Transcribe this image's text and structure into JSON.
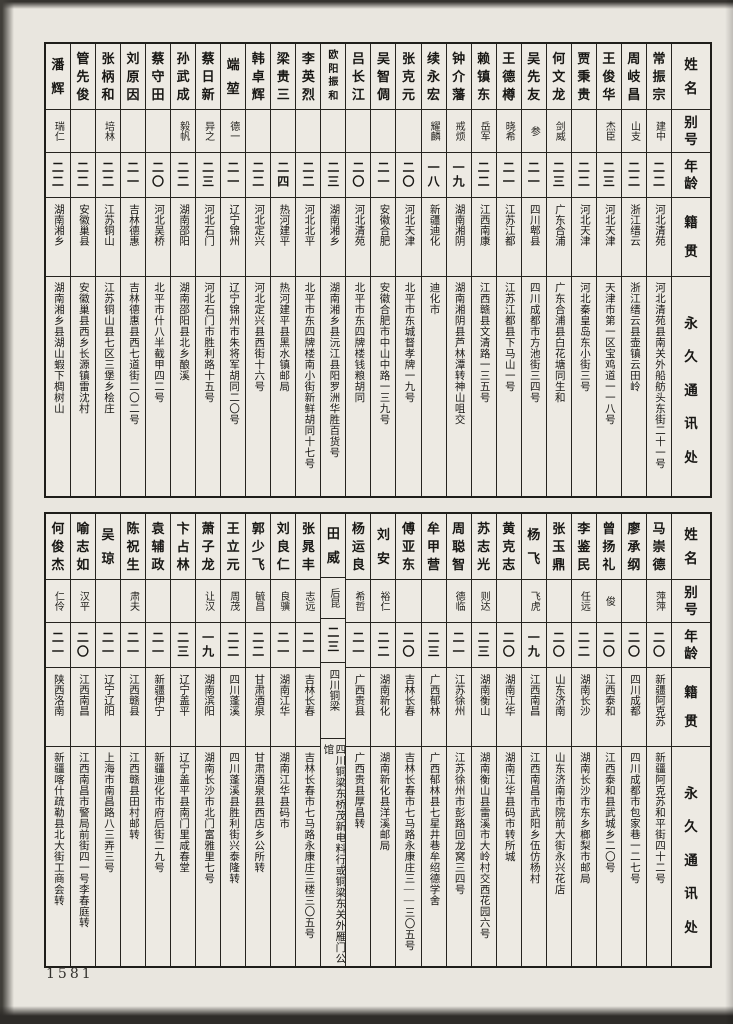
{
  "page": {
    "number": "1581"
  },
  "headers": {
    "name": "姓名",
    "alias": "别号",
    "age": "年龄",
    "native_place": "籍贯",
    "address": "永久通讯处"
  },
  "table1": {
    "entries": [
      {
        "name": "常振宗",
        "alias": "建中",
        "age": "二二",
        "native_place": "河北清苑",
        "address": "河北清苑县南关外船舫头东街二十一号"
      },
      {
        "name": "周岐昌",
        "alias": "山支",
        "age": "二二",
        "native_place": "浙江缙云",
        "address": "浙江缙云县壶镇云田岭"
      },
      {
        "name": "王俊华",
        "alias": "杰臣",
        "age": "二三",
        "native_place": "河北天津",
        "address": "天津市第一区宝鸡道一一八号"
      },
      {
        "name": "贾秉贵",
        "alias": "",
        "age": "二二",
        "native_place": "河北天津",
        "address": "河北秦皇岛东小街三号"
      },
      {
        "name": "何文龙",
        "alias": "剑威",
        "age": "二三",
        "native_place": "广东合浦",
        "address": "广东合浦县白花塘同生和"
      },
      {
        "name": "吴先友",
        "alias": "参",
        "age": "二一",
        "native_place": "四川郫县",
        "address": "四川成都市方池街三四号"
      },
      {
        "name": "王德樽",
        "alias": "晓希",
        "age": "二一",
        "native_place": "江苏江都",
        "address": "江苏江都县下马山一号"
      },
      {
        "name": "赖镇东",
        "alias": "岳军",
        "age": "二二",
        "native_place": "江西南康",
        "address": "江西赣县文清路一三五号"
      },
      {
        "name": "钟介藩",
        "alias": "戒烦",
        "age": "一九",
        "native_place": "湖南湘阴",
        "address": "湖南湘阴县芦林潭转神山咀交"
      },
      {
        "name": "续永宏",
        "alias": "耀麟",
        "age": "一八",
        "native_place": "新疆迪化",
        "address": "迪化市"
      },
      {
        "name": "张克元",
        "alias": "",
        "age": "二〇",
        "native_place": "河北天津",
        "address": "北平市东城督孝牌一九号"
      },
      {
        "name": "吴智倜",
        "alias": "",
        "age": "二一",
        "native_place": "安徽合肥",
        "address": "安徽合肥市中山中路一三九号"
      },
      {
        "name": "吕长江",
        "alias": "",
        "age": "二〇",
        "native_place": "河北清苑",
        "address": "北平市东四牌楼钱粮胡同"
      },
      {
        "name": "欧阳振和",
        "alias": "",
        "age": "二三",
        "native_place": "湖南湘乡",
        "address": "湖南湘乡县沅江县阳罗洲华胜百货号"
      },
      {
        "name": "李英烈",
        "alias": "",
        "age": "二二",
        "native_place": "河北北平",
        "address": "北平市东四牌楼南小街新鲜胡同十七号"
      },
      {
        "name": "梁贵三",
        "alias": "",
        "age": "二四",
        "native_place": "热河建平",
        "address": "热河建平县黑水镇邮局"
      },
      {
        "name": "韩卓辉",
        "alias": "",
        "age": "二二",
        "native_place": "河北定兴",
        "address": "河北定兴县西街十六号"
      },
      {
        "name": "端堃",
        "alias": "德一",
        "age": "二一",
        "native_place": "辽宁锦州",
        "address": "辽宁锦州市朱将军胡同二〇号"
      },
      {
        "name": "蔡日新",
        "alias": "异之",
        "age": "二三",
        "native_place": "河北石门",
        "address": "河北石门市胜利路十五号"
      },
      {
        "name": "孙武成",
        "alias": "毅帆",
        "age": "二二",
        "native_place": "湖南邵阳",
        "address": "湖南邵阳县北乡酿溪"
      },
      {
        "name": "蔡守田",
        "alias": "",
        "age": "二〇",
        "native_place": "河北吴桥",
        "address": "北平市什八半截甲四二号"
      },
      {
        "name": "刘原因",
        "alias": "",
        "age": "二一",
        "native_place": "吉林德惠",
        "address": "吉林德惠县西七道街二〇二号"
      },
      {
        "name": "张柄和",
        "alias": "培林",
        "age": "二二",
        "native_place": "江苏铜山",
        "address": "江苏铜山县七区三堡乡桧庄"
      },
      {
        "name": "管先俊",
        "alias": "",
        "age": "二二",
        "native_place": "安徽巢县",
        "address": "安徽巢县西乡长源镇雷沈村"
      },
      {
        "name": "潘辉",
        "alias": "瑞仁",
        "age": "二二",
        "native_place": "湖南湘乡",
        "address": "湖南湘乡县湖山蝦下椆树山"
      }
    ]
  },
  "table2": {
    "entries": [
      {
        "name": "马崇德",
        "alias": "萍萍",
        "age": "二〇",
        "native_place": "新疆阿克苏",
        "address": "新疆阿克苏和平街四十二号"
      },
      {
        "name": "廖承纲",
        "alias": "",
        "age": "二〇",
        "native_place": "四川成都",
        "address": "四川成都市包家巷一二七号"
      },
      {
        "name": "曾扬礼",
        "alias": "俊",
        "age": "二〇",
        "native_place": "江西泰和",
        "address": "江西泰和县武城乡二〇号"
      },
      {
        "name": "李鉴民",
        "alias": "任远",
        "age": "二二",
        "native_place": "湖南长沙",
        "address": "湖南长沙市东乡榔梨市邮局"
      },
      {
        "name": "张玉鼎",
        "alias": "",
        "age": "二〇",
        "native_place": "山东济南",
        "address": "山东济南市院前大街永兴花店"
      },
      {
        "name": "杨飞",
        "alias": "飞虎",
        "age": "一九",
        "native_place": "江西南昌",
        "address": "江西南昌市武阳乡伍仿杨村"
      },
      {
        "name": "黄克志",
        "alias": "",
        "age": "二〇",
        "native_place": "湖南江华",
        "address": "湖南江华县码市转所城"
      },
      {
        "name": "苏志光",
        "alias": "则达",
        "age": "二三",
        "native_place": "湖南衡山",
        "address": "湖南衡山县雷溪市大岭村交西花园六号"
      },
      {
        "name": "周聪智",
        "alias": "德临",
        "age": "二一",
        "native_place": "江苏徐州",
        "address": "江苏徐州市彭路回龙窝三四号"
      },
      {
        "name": "牟甲营",
        "alias": "",
        "age": "二三",
        "native_place": "广西郁林",
        "address": "广西郁林县七星井巷牟绍德学舍"
      },
      {
        "name": "傅亚东",
        "alias": "",
        "age": "二〇",
        "native_place": "吉林长春",
        "address": "吉林长春市七马路永康庄三——三〇五号"
      },
      {
        "name": "刘安",
        "alias": "裕仁",
        "age": "二二",
        "native_place": "湖南新化",
        "address": "湖南新化县洋溪邮局"
      },
      {
        "name": "杨运良",
        "alias": "希哲",
        "age": "二一",
        "native_place": "广西贵县",
        "address": "广西贵县厚昌转"
      },
      {
        "name": "田威",
        "alias": "后昆",
        "age": "二三",
        "native_place": "四川铜梁",
        "address": "四川铜梁东桥茂新电料行或铜梁东关外雁门公馆"
      },
      {
        "name": "张晁丰",
        "alias": "志远",
        "age": "二一",
        "native_place": "吉林长春",
        "address": "吉林长春市七马路永康庄三楼三〇五号"
      },
      {
        "name": "刘良仁",
        "alias": "良骥",
        "age": "二一",
        "native_place": "湖南江华",
        "address": "湖南江华县码市"
      },
      {
        "name": "郭少飞",
        "alias": "毓昌",
        "age": "二二",
        "native_place": "甘肃酒泉",
        "address": "甘肃酒泉县西店乡公所转"
      },
      {
        "name": "王立元",
        "alias": "周茂",
        "age": "二二",
        "native_place": "四川蓬溪",
        "address": "四川蓬溪县胜利街兴泰隆转"
      },
      {
        "name": "萧子龙",
        "alias": "让汉",
        "age": "一九",
        "native_place": "湖南滨阳",
        "address": "湖南长沙市北门富雅里七号"
      },
      {
        "name": "卞占林",
        "alias": "",
        "age": "二三",
        "native_place": "辽宁盖平",
        "address": "辽宁盖平县南门里咸春堂"
      },
      {
        "name": "袁辅政",
        "alias": "",
        "age": "二一",
        "native_place": "新疆伊宁",
        "address": "新疆迪化市府后街二九号"
      },
      {
        "name": "陈祝生",
        "alias": "肃夫",
        "age": "二一",
        "native_place": "江西赣县",
        "address": "江西赣县田村邮转"
      },
      {
        "name": "吴琼",
        "alias": "",
        "age": "二一",
        "native_place": "辽宁辽阳",
        "address": "上海市南昌路八三弄三号"
      },
      {
        "name": "喻志如",
        "alias": "汉平",
        "age": "二〇",
        "native_place": "江西南昌",
        "address": "江西南昌市警局前街四一号李春庭转"
      },
      {
        "name": "何俊杰",
        "alias": "仁伶",
        "age": "二一",
        "native_place": "陕西洛南",
        "address": "新疆喀什疏勒县北大街工商会转"
      }
    ]
  }
}
